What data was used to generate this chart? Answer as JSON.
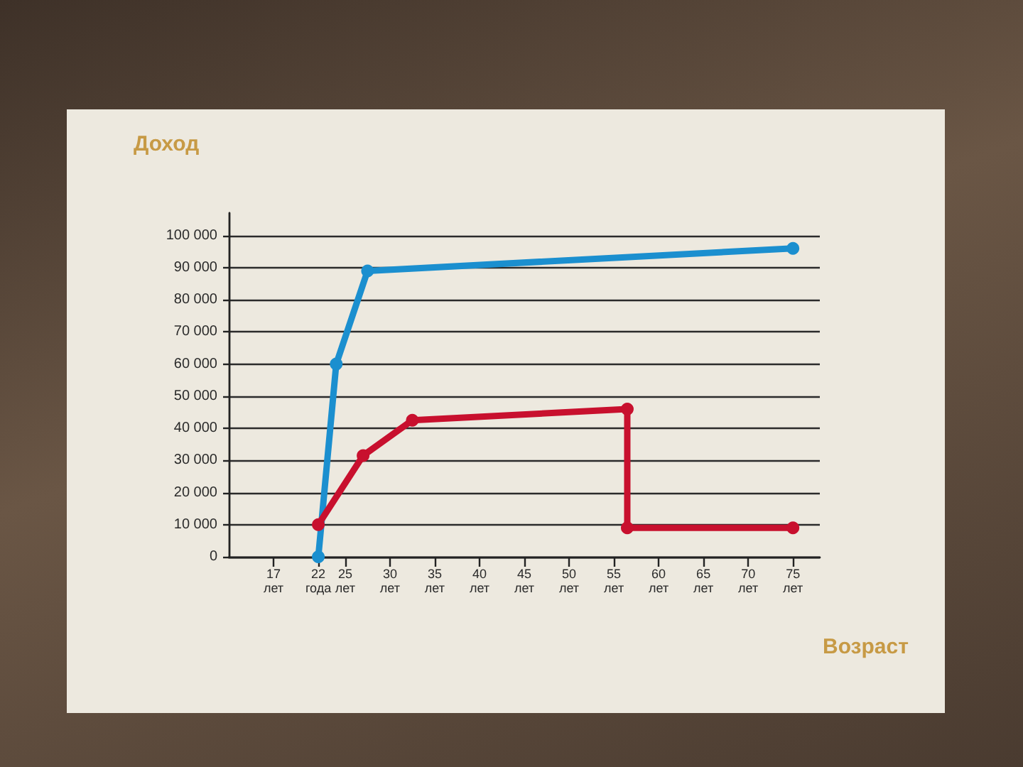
{
  "chart_data": {
    "type": "line",
    "xlabel": "Возраст",
    "ylabel": "Доход",
    "xlim": [
      12,
      78
    ],
    "xticks": [
      {
        "value": 17,
        "label": "17\nлет"
      },
      {
        "value": 22,
        "label": "22\nгода"
      },
      {
        "value": 25,
        "label": "25\nлет"
      },
      {
        "value": 30,
        "label": "30\nлет"
      },
      {
        "value": 35,
        "label": "35\nлет"
      },
      {
        "value": 40,
        "label": "40\nлет"
      },
      {
        "value": 45,
        "label": "45\nлет"
      },
      {
        "value": 50,
        "label": "50\nлет"
      },
      {
        "value": 55,
        "label": "55\nлет"
      },
      {
        "value": 60,
        "label": "60\nлет"
      },
      {
        "value": 65,
        "label": "65\nлет"
      },
      {
        "value": 70,
        "label": "70\nлет"
      },
      {
        "value": 75,
        "label": "75\nлет"
      }
    ],
    "ylim": [
      0,
      107000
    ],
    "yticks": [
      0,
      {
        "value": 10000,
        "label": "10 000"
      },
      {
        "value": 20000,
        "label": "20 000"
      },
      {
        "value": 30000,
        "label": "30 000"
      },
      {
        "value": 40000,
        "label": "40 000"
      },
      {
        "value": 50000,
        "label": "50 000"
      },
      {
        "value": 60000,
        "label": "60 000"
      },
      {
        "value": 70000,
        "label": "70 000"
      },
      {
        "value": 80000,
        "label": "80 000"
      },
      {
        "value": 90000,
        "label": "90 000"
      },
      {
        "value": 100000,
        "label": "100 000"
      }
    ],
    "grid": "y",
    "marker": "circle",
    "line_style": "solid",
    "series": [
      {
        "color": "#1b8fcf",
        "x": [
          22,
          24,
          27.5,
          75
        ],
        "values": [
          0,
          60000,
          89000,
          96000
        ]
      },
      {
        "color": "#c8102e",
        "x": [
          22,
          27,
          32.5,
          56.5,
          56.5,
          75
        ],
        "values": [
          10000,
          31500,
          42500,
          46000,
          9000,
          9000
        ]
      }
    ]
  }
}
